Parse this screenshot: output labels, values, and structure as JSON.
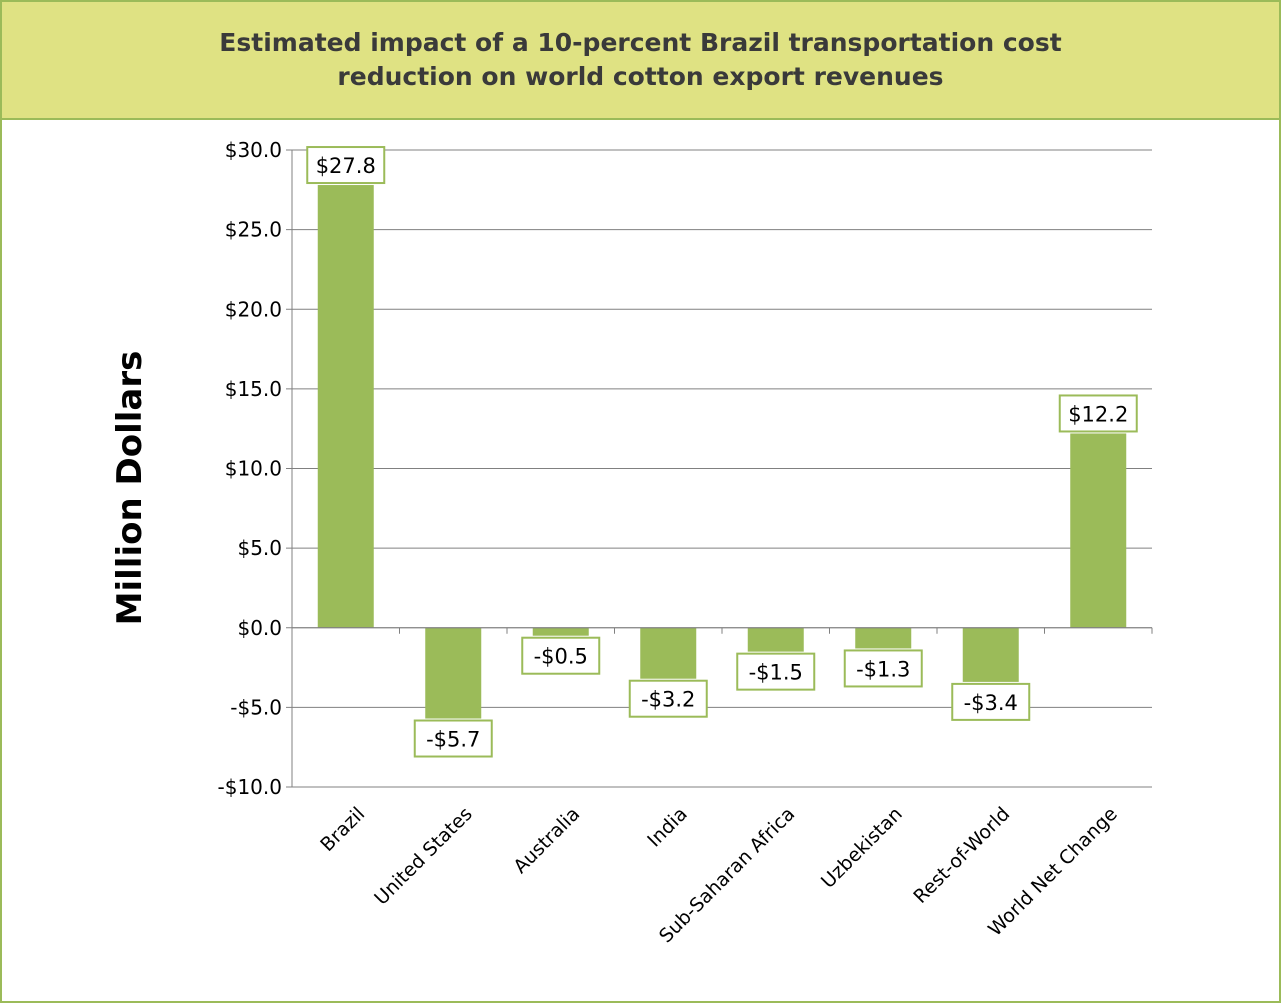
{
  "chart_data": {
    "type": "bar",
    "title": "Estimated impact of a 10-percent Brazil transportation cost\nreduction on world cotton export revenues",
    "ylabel": "Million Dollars",
    "xlabel": "",
    "categories": [
      "Brazil",
      "United States",
      "Australia",
      "India",
      "Sub-Saharan Africa",
      "Uzbekistan",
      "Rest-of-World",
      "World Net Change"
    ],
    "values": [
      27.8,
      -5.7,
      -0.5,
      -3.2,
      -1.5,
      -1.3,
      -3.4,
      12.2
    ],
    "data_labels": [
      "$27.8",
      "-$5.7",
      "-$0.5",
      "-$3.2",
      "-$1.5",
      "-$1.3",
      "-$3.4",
      "$12.2"
    ],
    "ylim": [
      -10,
      30
    ],
    "yticks": [
      30,
      25,
      20,
      15,
      10,
      5,
      0,
      -5,
      -10
    ],
    "ytick_labels": [
      "$30.0",
      "$25.0",
      "$20.0",
      "$15.0",
      "$10.0",
      "$5.0",
      "$0.0",
      "-$5.0",
      "-$10.0"
    ],
    "grid": true,
    "legend": false,
    "colors": {
      "bar": "#9bbb59",
      "label_border": "#9bbb59",
      "title_background": "#dfe283",
      "frame": "#9bbb59",
      "gridline": "#808080"
    }
  }
}
